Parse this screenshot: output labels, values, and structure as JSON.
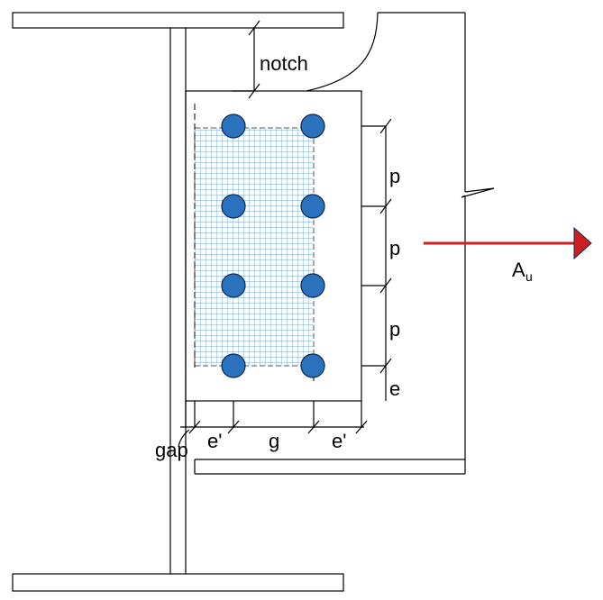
{
  "labels": {
    "notch": "notch",
    "pitch": "p",
    "edge": "e",
    "edge_prime": "e'",
    "gauge": "g",
    "gap": "gap",
    "axial_main": "A",
    "axial_sub": "u"
  },
  "colors": {
    "bolt_fill": "#2a72bd",
    "bolt_stroke": "#0b2a4e",
    "hatch": "#6fa6d6",
    "arrow": "#cc1f1f",
    "line": "#000000"
  },
  "bolts": {
    "columns": 2,
    "rows": 4
  }
}
